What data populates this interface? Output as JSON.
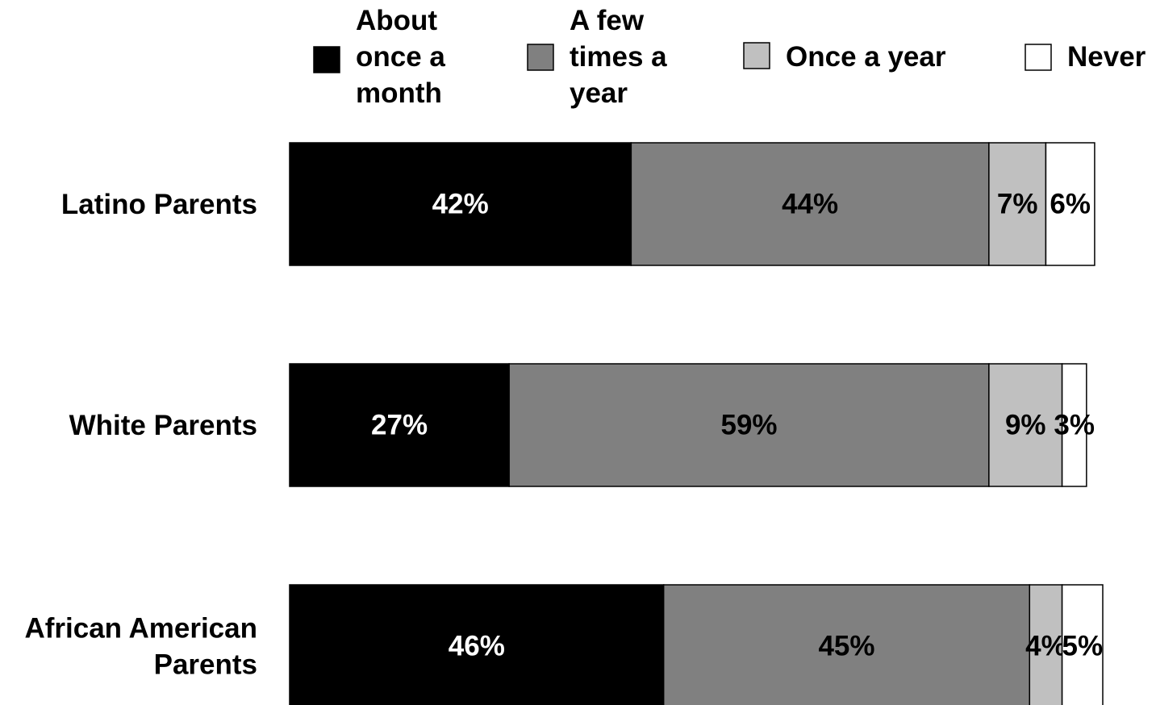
{
  "chart_data": {
    "type": "bar",
    "orientation": "horizontal",
    "stacked": true,
    "percent_labels": true,
    "categories": [
      [
        "Latino Parents"
      ],
      [
        "White Parents"
      ],
      [
        "African American",
        "Parents"
      ]
    ],
    "series": [
      {
        "name": [
          "About",
          "once a",
          "month"
        ],
        "color": "#000000",
        "label_color": "#ffffff",
        "values": [
          42,
          27,
          46
        ]
      },
      {
        "name": [
          "A few",
          "times a",
          "year"
        ],
        "color": "#808080",
        "label_color": "#000000",
        "values": [
          44,
          59,
          45
        ]
      },
      {
        "name": [
          "Once a year"
        ],
        "color": "#c0c0c0",
        "label_color": "#000000",
        "values": [
          7,
          9,
          4
        ]
      },
      {
        "name": [
          "Never"
        ],
        "color": "#ffffff",
        "label_color": "#000000",
        "values": [
          6,
          3,
          5
        ]
      }
    ],
    "legend_position": "top",
    "grid": false,
    "x_axis_visible": false
  }
}
